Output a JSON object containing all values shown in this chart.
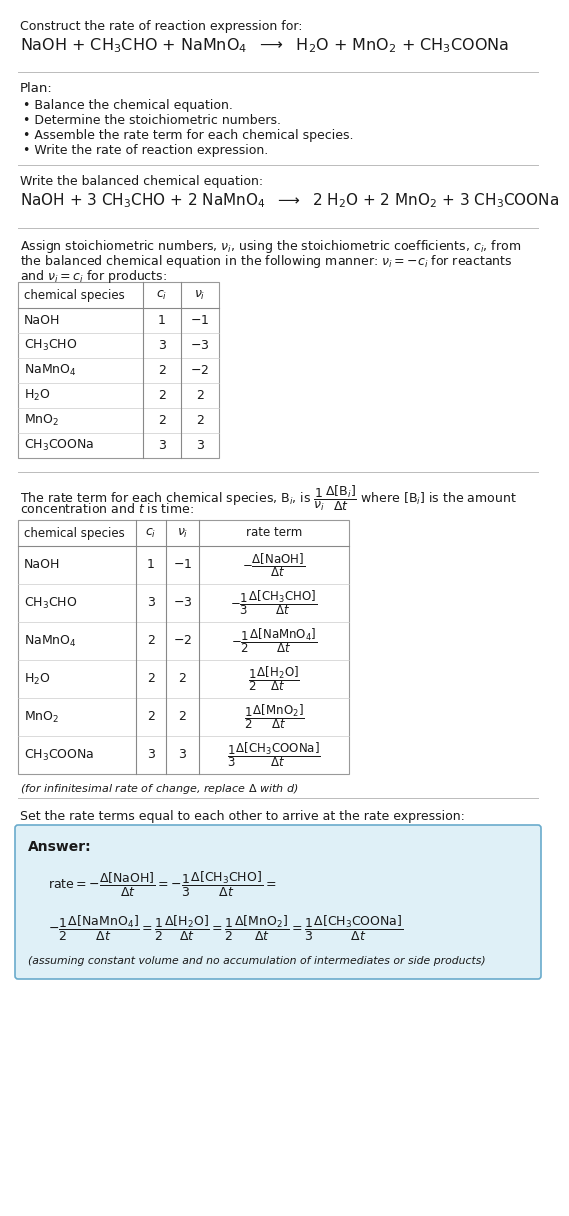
{
  "bg_color": "#ffffff",
  "text_color": "#1a1a1a",
  "title_line1": "Construct the rate of reaction expression for:",
  "reaction_unbalanced": "NaOH + CH$_3$CHO + NaMnO$_4$  $\\longrightarrow$  H$_2$O + MnO$_2$ + CH$_3$COONa",
  "plan_title": "Plan:",
  "plan_items": [
    "Balance the chemical equation.",
    "Determine the stoichiometric numbers.",
    "Assemble the rate term for each chemical species.",
    "Write the rate of reaction expression."
  ],
  "balanced_label": "Write the balanced chemical equation:",
  "reaction_balanced": "NaOH + 3 CH$_3$CHO + 2 NaMnO$_4$  $\\longrightarrow$  2 H$_2$O + 2 MnO$_2$ + 3 CH$_3$COONa",
  "assign_line1": "Assign stoichiometric numbers, $\\nu_i$, using the stoichiometric coefficients, $c_i$, from",
  "assign_line2": "the balanced chemical equation in the following manner: $\\nu_i = -c_i$ for reactants",
  "assign_line3": "and $\\nu_i = c_i$ for products:",
  "table1_headers": [
    "chemical species",
    "$c_i$",
    "$\\nu_i$"
  ],
  "table1_rows": [
    [
      "NaOH",
      "1",
      "$-1$"
    ],
    [
      "CH$_3$CHO",
      "3",
      "$-3$"
    ],
    [
      "NaMnO$_4$",
      "2",
      "$-2$"
    ],
    [
      "H$_2$O",
      "2",
      "2"
    ],
    [
      "MnO$_2$",
      "2",
      "2"
    ],
    [
      "CH$_3$COONa",
      "3",
      "3"
    ]
  ],
  "rate_line1": "The rate term for each chemical species, B$_i$, is $\\dfrac{1}{\\nu_i}\\dfrac{\\Delta[\\mathrm{B}_i]}{\\Delta t}$ where [B$_i$] is the amount",
  "rate_line2": "concentration and $t$ is time:",
  "table2_headers": [
    "chemical species",
    "$c_i$",
    "$\\nu_i$",
    "rate term"
  ],
  "table2_rows": [
    [
      "NaOH",
      "1",
      "$-1$",
      "$-\\dfrac{\\Delta[\\mathrm{NaOH}]}{\\Delta t}$"
    ],
    [
      "CH$_3$CHO",
      "3",
      "$-3$",
      "$-\\dfrac{1}{3}\\dfrac{\\Delta[\\mathrm{CH_3CHO}]}{\\Delta t}$"
    ],
    [
      "NaMnO$_4$",
      "2",
      "$-2$",
      "$-\\dfrac{1}{2}\\dfrac{\\Delta[\\mathrm{NaMnO_4}]}{\\Delta t}$"
    ],
    [
      "H$_2$O",
      "2",
      "2",
      "$\\dfrac{1}{2}\\dfrac{\\Delta[\\mathrm{H_2O}]}{\\Delta t}$"
    ],
    [
      "MnO$_2$",
      "2",
      "2",
      "$\\dfrac{1}{2}\\dfrac{\\Delta[\\mathrm{MnO_2}]}{\\Delta t}$"
    ],
    [
      "CH$_3$COONa",
      "3",
      "3",
      "$\\dfrac{1}{3}\\dfrac{\\Delta[\\mathrm{CH_3COONa}]}{\\Delta t}$"
    ]
  ],
  "infinitesimal_note": "(for infinitesimal rate of change, replace $\\Delta$ with $d$)",
  "set_rate_text": "Set the rate terms equal to each other to arrive at the rate expression:",
  "answer_box_color": "#dff0f7",
  "answer_border_color": "#6aabcc",
  "answer_label": "Answer:",
  "answer_note": "(assuming constant volume and no accumulation of intermediates or side products)"
}
